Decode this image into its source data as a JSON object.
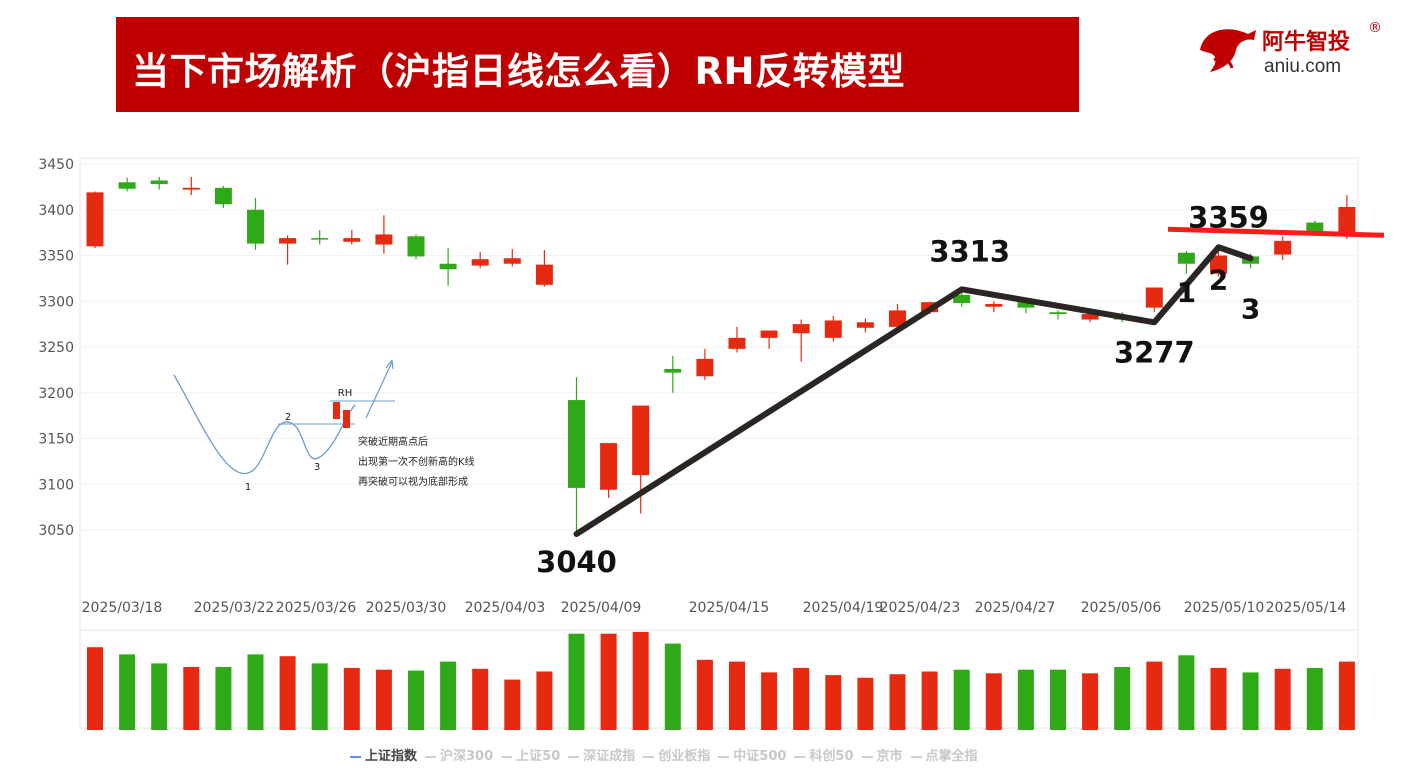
{
  "header": {
    "title": "当下市场解析（沪指日线怎么看）RH反转模型",
    "logo_cn": "阿牛智投",
    "logo_reg": "®",
    "logo_en": "aniu.com"
  },
  "colors": {
    "banner": "#c00000",
    "up": "#e62a12",
    "down": "#30a919",
    "trend": "#2b2523",
    "resistance": "#ff1a1a"
  },
  "chart_data": {
    "type": "candlestick",
    "ylim": [
      3000,
      3460
    ],
    "yticks": [
      3050,
      3100,
      3150,
      3200,
      3250,
      3300,
      3350,
      3400,
      3450
    ],
    "xtick_labels": [
      "2025/03/18",
      "2025/03/22",
      "2025/03/26",
      "2025/03/30",
      "2025/04/03",
      "2025/04/09",
      "2025/04/15",
      "2025/04/19",
      "2025/04/23",
      "2025/04/27",
      "2025/05/06",
      "2025/05/10",
      "2025/05/14"
    ],
    "candles": [
      {
        "o": 3360,
        "c": 3419,
        "h": 3420,
        "l": 3358
      },
      {
        "o": 3430,
        "c": 3423,
        "h": 3435,
        "l": 3420
      },
      {
        "o": 3432,
        "c": 3428,
        "h": 3436,
        "l": 3422
      },
      {
        "o": 3422,
        "c": 3424,
        "h": 3436,
        "l": 3416
      },
      {
        "o": 3424,
        "c": 3406,
        "h": 3426,
        "l": 3402
      },
      {
        "o": 3400,
        "c": 3363,
        "h": 3413,
        "l": 3356
      },
      {
        "o": 3363,
        "c": 3369,
        "h": 3372,
        "l": 3340
      },
      {
        "o": 3369,
        "c": 3368,
        "h": 3378,
        "l": 3362
      },
      {
        "o": 3365,
        "c": 3369,
        "h": 3378,
        "l": 3362
      },
      {
        "o": 3362,
        "c": 3373,
        "h": 3394,
        "l": 3352
      },
      {
        "o": 3371,
        "c": 3349,
        "h": 3373,
        "l": 3346
      },
      {
        "o": 3341,
        "c": 3335,
        "h": 3358,
        "l": 3317
      },
      {
        "o": 3339,
        "c": 3346,
        "h": 3354,
        "l": 3336
      },
      {
        "o": 3341,
        "c": 3347,
        "h": 3357,
        "l": 3338
      },
      {
        "o": 3318,
        "c": 3340,
        "h": 3356,
        "l": 3316
      },
      {
        "o": 3192,
        "c": 3096,
        "h": 3217,
        "l": 3045
      },
      {
        "o": 3094,
        "c": 3145,
        "h": 3145,
        "l": 3085
      },
      {
        "o": 3110,
        "c": 3186,
        "h": 3186,
        "l": 3068
      },
      {
        "o": 3226,
        "c": 3222,
        "h": 3240,
        "l": 3200
      },
      {
        "o": 3218,
        "c": 3237,
        "h": 3248,
        "l": 3214
      },
      {
        "o": 3248,
        "c": 3260,
        "h": 3272,
        "l": 3244
      },
      {
        "o": 3260,
        "c": 3268,
        "h": 3268,
        "l": 3248
      },
      {
        "o": 3265,
        "c": 3275,
        "h": 3280,
        "l": 3234
      },
      {
        "o": 3260,
        "c": 3279,
        "h": 3284,
        "l": 3256
      },
      {
        "o": 3271,
        "c": 3277,
        "h": 3281,
        "l": 3266
      },
      {
        "o": 3272,
        "c": 3290,
        "h": 3297,
        "l": 3269
      },
      {
        "o": 3288,
        "c": 3299,
        "h": 3299,
        "l": 3286
      },
      {
        "o": 3307,
        "c": 3298,
        "h": 3310,
        "l": 3294
      },
      {
        "o": 3294,
        "c": 3297,
        "h": 3300,
        "l": 3288
      },
      {
        "o": 3299,
        "c": 3293,
        "h": 3302,
        "l": 3287
      },
      {
        "o": 3288,
        "c": 3286,
        "h": 3290,
        "l": 3280
      },
      {
        "o": 3280,
        "c": 3286,
        "h": 3292,
        "l": 3277
      },
      {
        "o": 3285,
        "c": 3280,
        "h": 3288,
        "l": 3277
      },
      {
        "o": 3293,
        "c": 3315,
        "h": 3315,
        "l": 3288
      },
      {
        "o": 3353,
        "c": 3341,
        "h": 3355,
        "l": 3330
      },
      {
        "o": 3330,
        "c": 3350,
        "h": 3355,
        "l": 3327
      },
      {
        "o": 3349,
        "c": 3341,
        "h": 3352,
        "l": 3336
      },
      {
        "o": 3351,
        "c": 3366,
        "h": 3371,
        "l": 3345
      },
      {
        "o": 3386,
        "c": 3376,
        "h": 3388,
        "l": 3374
      },
      {
        "o": 3372,
        "c": 3403,
        "h": 3416,
        "l": 3368
      }
    ],
    "volume": [
      0.92,
      0.84,
      0.74,
      0.7,
      0.7,
      0.84,
      0.82,
      0.74,
      0.69,
      0.67,
      0.66,
      0.76,
      0.68,
      0.56,
      0.65,
      1.07,
      1.07,
      1.09,
      0.96,
      0.78,
      0.76,
      0.64,
      0.69,
      0.61,
      0.58,
      0.62,
      0.65,
      0.67,
      0.63,
      0.67,
      0.67,
      0.63,
      0.7,
      0.76,
      0.83,
      0.69,
      0.64,
      0.68,
      0.69,
      0.76
    ],
    "trend_line": [
      {
        "i": 15,
        "v": 3040
      },
      {
        "i": 27,
        "v": 3313
      },
      {
        "i": 33,
        "v": 3277
      },
      {
        "i": 35,
        "v": 3359
      },
      {
        "i": 36,
        "v": 3347
      }
    ],
    "resistance_y": 3359,
    "annotations": [
      {
        "text": "3040",
        "i": 15,
        "v": 3040
      },
      {
        "text": "3313",
        "i": 27,
        "v": 3313
      },
      {
        "text": "3277",
        "i": 33,
        "v": 3277
      },
      {
        "text": "3359",
        "i": 35,
        "v": 3359
      },
      {
        "text": "1",
        "i": 34,
        "v": 3330
      },
      {
        "text": "2",
        "i": 35,
        "v": 3340
      },
      {
        "text": "3",
        "i": 36,
        "v": 3325
      }
    ],
    "inset": {
      "label_rh": "RH",
      "label_1": "1",
      "label_2": "2",
      "label_3": "3",
      "text_lines": [
        "突破近期高点后",
        "出现第一次不创新高的K线",
        "再突破可以视为底部形成"
      ]
    },
    "legend": [
      {
        "label": "上证指数",
        "active": true
      },
      {
        "label": "沪深300",
        "active": false
      },
      {
        "label": "上证50",
        "active": false
      },
      {
        "label": "深证成指",
        "active": false
      },
      {
        "label": "创业板指",
        "active": false
      },
      {
        "label": "中证500",
        "active": false
      },
      {
        "label": "科创50",
        "active": false
      },
      {
        "label": "京市",
        "active": false
      },
      {
        "label": "点掌全指",
        "active": false
      }
    ]
  }
}
